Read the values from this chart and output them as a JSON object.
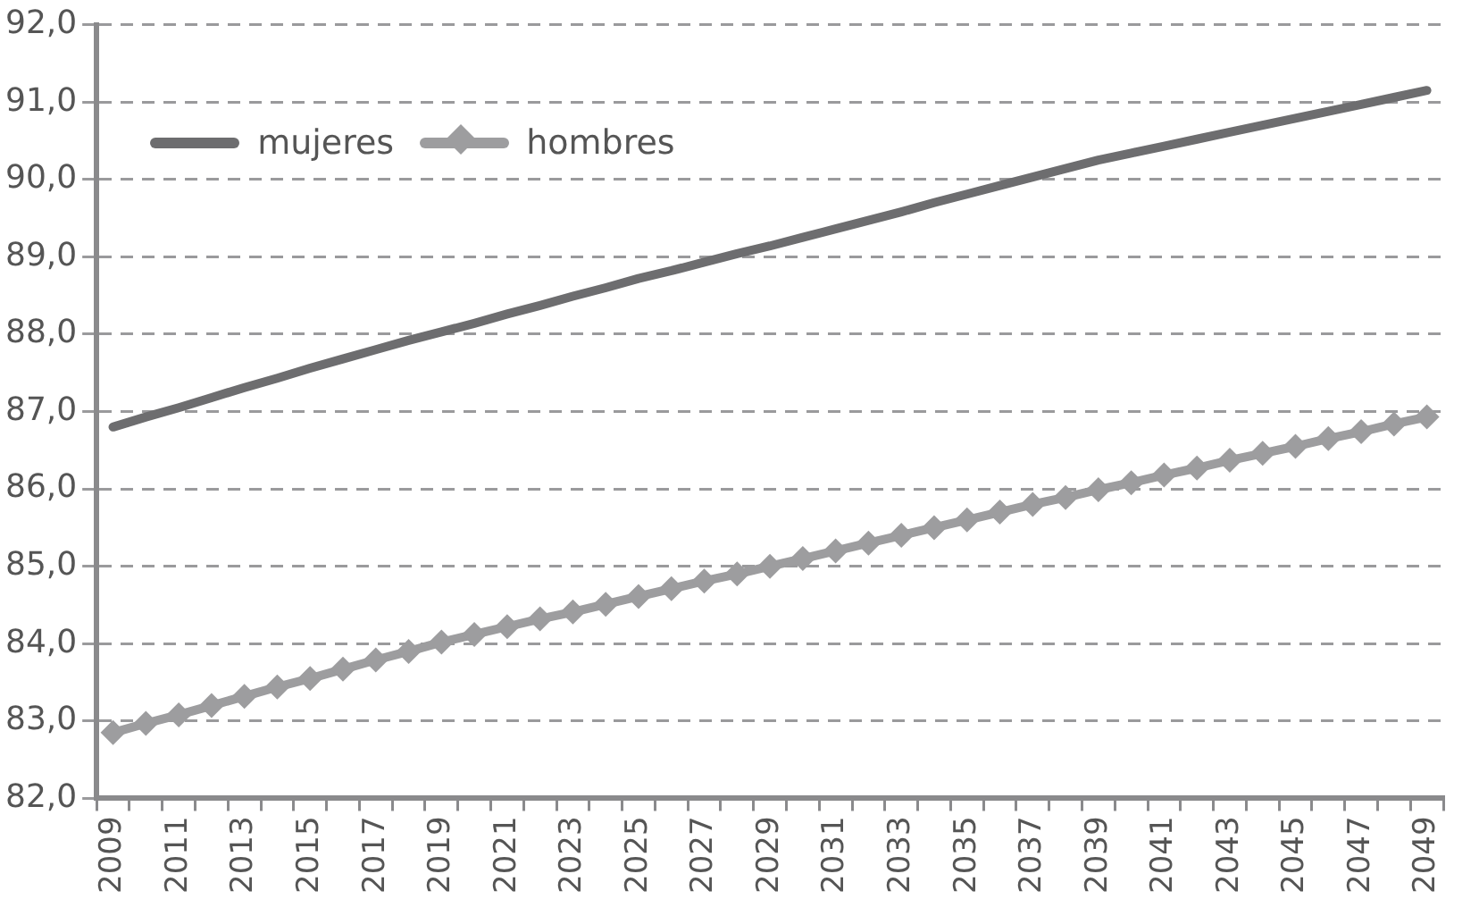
{
  "chart_data": {
    "type": "line",
    "categories": [
      "2009",
      null,
      "2011",
      null,
      "2013",
      null,
      "2015",
      null,
      "2017",
      null,
      "2019",
      null,
      "2021",
      null,
      "2023",
      null,
      "2025",
      null,
      "2027",
      null,
      "2029",
      null,
      "2031",
      null,
      "2033",
      null,
      "2035",
      null,
      "2037",
      null,
      "2039",
      null,
      "2041",
      null,
      "2043",
      null,
      "2045",
      null,
      "2047",
      null,
      "2049"
    ],
    "series": [
      {
        "name": "mujeres",
        "color": "#6d6d6f",
        "marker": "none",
        "values": [
          86.8,
          86.93,
          87.05,
          87.18,
          87.31,
          87.43,
          87.56,
          87.68,
          87.8,
          87.92,
          88.03,
          88.14,
          88.26,
          88.37,
          88.49,
          88.6,
          88.72,
          88.82,
          88.93,
          89.04,
          89.14,
          89.25,
          89.36,
          89.47,
          89.58,
          89.7,
          89.81,
          89.92,
          90.03,
          90.14,
          90.25,
          90.34,
          90.43,
          90.52,
          90.61,
          90.7,
          90.79,
          90.88,
          90.97,
          91.06,
          91.15
        ]
      },
      {
        "name": "hombres",
        "color": "#9d9d9f",
        "marker": "diamond",
        "values": [
          82.85,
          82.97,
          83.08,
          83.2,
          83.32,
          83.44,
          83.55,
          83.67,
          83.79,
          83.9,
          84.02,
          84.12,
          84.22,
          84.32,
          84.41,
          84.51,
          84.61,
          84.71,
          84.81,
          84.9,
          85.0,
          85.1,
          85.2,
          85.3,
          85.4,
          85.5,
          85.6,
          85.7,
          85.8,
          85.89,
          85.99,
          86.08,
          86.18,
          86.27,
          86.37,
          86.46,
          86.55,
          86.65,
          86.74,
          86.84,
          86.93
        ]
      }
    ],
    "ylim": [
      82,
      92
    ],
    "yticks": [
      {
        "value": 82,
        "label": "82,0"
      },
      {
        "value": 83,
        "label": "83,0"
      },
      {
        "value": 84,
        "label": "84,0"
      },
      {
        "value": 85,
        "label": "85,0"
      },
      {
        "value": 86,
        "label": "86,0"
      },
      {
        "value": 87,
        "label": "87,0"
      },
      {
        "value": 88,
        "label": "88,0"
      },
      {
        "value": 89,
        "label": "89,0"
      },
      {
        "value": 90,
        "label": "90,0"
      },
      {
        "value": 91,
        "label": "91,0"
      },
      {
        "value": 92,
        "label": "92,0"
      }
    ],
    "grid": "y",
    "line_style": "solid",
    "legend": "top left"
  }
}
